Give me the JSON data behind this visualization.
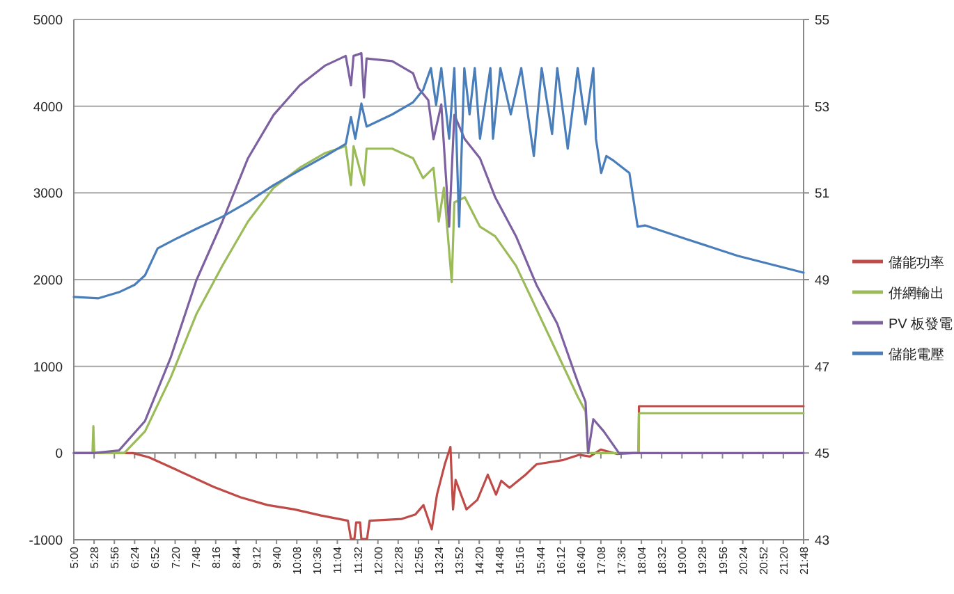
{
  "chart_data": {
    "type": "line",
    "xlim": [
      5,
      21.8
    ],
    "xticks": [
      {
        "value": 5,
        "label": "5:00"
      },
      {
        "value": 5.4667,
        "label": "5:28"
      },
      {
        "value": 5.9333,
        "label": "5:56"
      },
      {
        "value": 6.4,
        "label": "6:24"
      },
      {
        "value": 6.8667,
        "label": "6:52"
      },
      {
        "value": 7.3333,
        "label": "7:20"
      },
      {
        "value": 7.8,
        "label": "7:48"
      },
      {
        "value": 8.2667,
        "label": "8:16"
      },
      {
        "value": 8.7333,
        "label": "8:44"
      },
      {
        "value": 9.2,
        "label": "9:12"
      },
      {
        "value": 9.6667,
        "label": "9:40"
      },
      {
        "value": 10.1333,
        "label": "10:08"
      },
      {
        "value": 10.6,
        "label": "10:36"
      },
      {
        "value": 11.0667,
        "label": "11:04"
      },
      {
        "value": 11.5333,
        "label": "11:32"
      },
      {
        "value": 12,
        "label": "12:00"
      },
      {
        "value": 12.4667,
        "label": "12:28"
      },
      {
        "value": 12.9333,
        "label": "12:56"
      },
      {
        "value": 13.4,
        "label": "13:24"
      },
      {
        "value": 13.8667,
        "label": "13:52"
      },
      {
        "value": 14.3333,
        "label": "14:20"
      },
      {
        "value": 14.8,
        "label": "14:48"
      },
      {
        "value": 15.2667,
        "label": "15:16"
      },
      {
        "value": 15.7333,
        "label": "15:44"
      },
      {
        "value": 16.2,
        "label": "16:12"
      },
      {
        "value": 16.6667,
        "label": "16:40"
      },
      {
        "value": 17.1333,
        "label": "17:08"
      },
      {
        "value": 17.6,
        "label": "17:36"
      },
      {
        "value": 18.0667,
        "label": "18:04"
      },
      {
        "value": 18.5333,
        "label": "18:32"
      },
      {
        "value": 19,
        "label": "19:00"
      },
      {
        "value": 19.4667,
        "label": "19:28"
      },
      {
        "value": 19.9333,
        "label": "19:56"
      },
      {
        "value": 20.4,
        "label": "20:24"
      },
      {
        "value": 20.8667,
        "label": "20:52"
      },
      {
        "value": 21.3333,
        "label": "21:20"
      },
      {
        "value": 21.8,
        "label": "21:48"
      }
    ],
    "ylim": [
      -1000,
      5000
    ],
    "yticks": [
      -1000,
      0,
      1000,
      2000,
      3000,
      4000,
      5000
    ],
    "y2lim": [
      43,
      55
    ],
    "y2ticks": [
      43,
      45,
      47,
      49,
      51,
      53,
      55
    ],
    "grid": "y",
    "legend": "right",
    "marker": "none",
    "line_style": "solid",
    "series": [
      {
        "name": "儲能功率",
        "color": "#be4b48",
        "x": [
          5,
          6.36,
          6.73,
          7.35,
          8.22,
          8.84,
          9.46,
          10.08,
          10.69,
          11.31,
          11.38,
          11.46,
          11.5,
          11.59,
          11.62,
          11.75,
          11.81,
          12.55,
          12.86,
          13.05,
          13.24,
          13.36,
          13.54,
          13.67,
          13.73,
          13.79,
          14.04,
          14.29,
          14.53,
          14.72,
          14.84,
          15.03,
          15.4,
          15.65,
          16.27,
          16.64,
          16.88,
          17.13,
          17.5,
          17.88,
          18.0,
          18.01,
          21.8
        ],
        "values": [
          0,
          0,
          -50,
          -190,
          -390,
          -510,
          -600,
          -650,
          -720,
          -780,
          -990,
          -990,
          -800,
          -800,
          -990,
          -990,
          -780,
          -760,
          -710,
          -600,
          -880,
          -480,
          -130,
          70,
          -650,
          -310,
          -650,
          -540,
          -250,
          -480,
          -320,
          -400,
          -250,
          -130,
          -80,
          -20,
          -40,
          40,
          -10,
          0,
          0,
          540,
          540
        ]
      },
      {
        "name": "併網輸出",
        "color": "#9bbb59",
        "x": [
          5,
          5.43,
          5.45,
          5.47,
          6.16,
          6.64,
          7.23,
          7.82,
          8.42,
          9.01,
          9.6,
          10.2,
          10.79,
          11.26,
          11.38,
          11.44,
          11.68,
          11.74,
          12.33,
          12.81,
          13.04,
          13.28,
          13.4,
          13.52,
          13.7,
          13.76,
          14.0,
          14.35,
          14.7,
          15.18,
          15.65,
          16.13,
          16.6,
          16.78,
          16.84,
          18.0,
          18.01,
          21.8
        ],
        "values": [
          0,
          0,
          310,
          0,
          0,
          250,
          870,
          1600,
          2160,
          2670,
          3060,
          3290,
          3460,
          3540,
          3090,
          3540,
          3090,
          3510,
          3510,
          3400,
          3170,
          3290,
          2670,
          3060,
          1970,
          2890,
          2950,
          2610,
          2500,
          2160,
          1660,
          1150,
          650,
          480,
          0,
          0,
          460,
          460
        ]
      },
      {
        "name": "PV 板發電",
        "color": "#7d60a0",
        "x": [
          5,
          5.45,
          6.04,
          6.64,
          7.23,
          7.82,
          8.42,
          9.01,
          9.6,
          10.2,
          10.79,
          11.26,
          11.38,
          11.44,
          11.62,
          11.68,
          11.74,
          12.33,
          12.81,
          12.93,
          13.16,
          13.28,
          13.46,
          13.64,
          13.76,
          14.0,
          14.35,
          14.7,
          15.18,
          15.65,
          16.13,
          16.6,
          16.78,
          16.84,
          16.96,
          17.2,
          17.55,
          21.8
        ],
        "values": [
          0,
          0,
          30,
          370,
          1100,
          1990,
          2670,
          3400,
          3900,
          4240,
          4470,
          4580,
          4240,
          4580,
          4610,
          4100,
          4550,
          4520,
          4380,
          4210,
          4070,
          3620,
          4020,
          2610,
          3900,
          3620,
          3400,
          2950,
          2500,
          1940,
          1490,
          820,
          590,
          0,
          390,
          250,
          0,
          0
        ]
      },
      {
        "name": "儲能電壓",
        "color": "#4a7ebb",
        "axis": "y2",
        "x": [
          5,
          5.57,
          6.04,
          6.4,
          6.64,
          6.93,
          7.35,
          7.82,
          8.42,
          9.01,
          9.6,
          10.2,
          10.79,
          11.26,
          11.38,
          11.48,
          11.62,
          11.74,
          12.33,
          12.81,
          13.04,
          13.22,
          13.34,
          13.46,
          13.64,
          13.76,
          13.87,
          13.99,
          14.11,
          14.23,
          14.35,
          14.59,
          14.65,
          14.82,
          15.06,
          15.3,
          15.59,
          15.77,
          16.01,
          16.13,
          16.37,
          16.6,
          16.78,
          16.96,
          17.02,
          17.14,
          17.26,
          17.43,
          17.79,
          17.98,
          18.15,
          19.09,
          20.28,
          21.8
        ],
        "values": [
          48.6,
          48.57,
          48.71,
          48.88,
          49.1,
          49.72,
          49.94,
          50.17,
          50.45,
          50.79,
          51.18,
          51.52,
          51.85,
          52.13,
          52.75,
          52.25,
          53.06,
          52.53,
          52.81,
          53.09,
          53.37,
          53.88,
          53.03,
          53.88,
          52.25,
          53.88,
          50.22,
          53.88,
          52.81,
          53.88,
          52.25,
          53.88,
          52.25,
          53.88,
          52.81,
          53.88,
          51.85,
          53.88,
          52.36,
          53.88,
          52.02,
          53.88,
          52.58,
          53.88,
          52.25,
          51.46,
          51.85,
          51.74,
          51.46,
          50.22,
          50.25,
          49.94,
          49.55,
          49.16
        ]
      }
    ]
  }
}
